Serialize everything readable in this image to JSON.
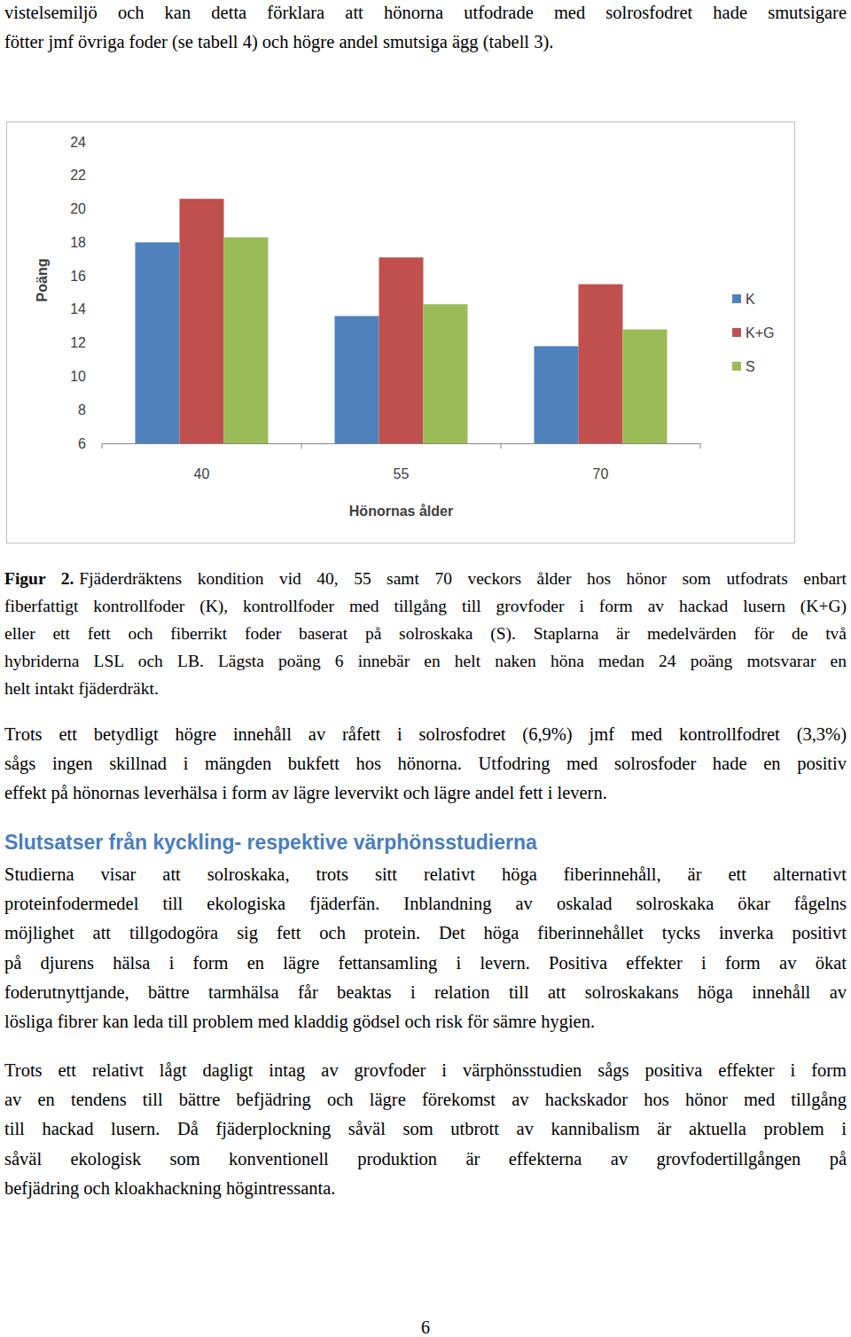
{
  "document": {
    "intro": {
      "lines": [
        "vistelsemiljö och kan detta förklara att hönorna utfodrade med solrosfodret hade smutsigare",
        "fötter jmf övriga foder (se tabell 4) och högre andel smutsiga ägg (tabell 3)."
      ]
    },
    "caption": {
      "label": "Figur 2.",
      "lines": [
        "Fjäderdräktens kondition vid 40, 55 samt 70 veckors ålder hos hönor som utfodrats enbart",
        "fiberfattigt kontrollfoder (K), kontrollfoder med tillgång till grovfoder i form av hackad lusern (K+G)",
        "eller ett fett och fiberrikt foder baserat på solroskaka (S). Staplarna är medelvärden för de två",
        "hybriderna LSL och LB. Lägsta poäng 6 innebär en helt naken höna medan 24 poäng motsvarar en",
        "helt intakt fjäderdräkt."
      ]
    },
    "paragraph_1": {
      "lines": [
        "Trots ett betydligt högre innehåll av råfett i solrosfodret (6,9%) jmf med kontrollfodret (3,3%)",
        "sågs ingen skillnad i mängden bukfett hos hönorna. Utfodring med solrosfoder hade en positiv",
        "effekt på hönornas leverhälsa i form av lägre levervikt och lägre andel fett i levern."
      ]
    },
    "heading": "Slutsatser från kyckling- respektive värphönsstudierna",
    "paragraph_2": {
      "lines": [
        "Studierna visar att solroskaka, trots sitt relativt höga fiberinnehåll, är ett alternativt",
        "proteinfodermedel till ekologiska fjäderfän. Inblandning av oskalad solroskaka ökar fågelns",
        "möjlighet att tillgodogöra sig fett och protein. Det höga fiberinnehållet tycks inverka positivt",
        "på djurens hälsa i form en lägre fettansamling i levern. Positiva effekter i form av ökat",
        "foderutnyttjande, bättre tarmhälsa får beaktas i relation till att solroskakans höga innehåll av",
        "lösliga fibrer kan leda till problem med kladdig gödsel och risk för sämre hygien."
      ]
    },
    "paragraph_3": {
      "lines": [
        "Trots ett relativt lågt dagligt intag av grovfoder i värphönsstudien sågs positiva effekter i form",
        "av en tendens till bättre befjädring och lägre förekomst av hackskador hos hönor med tillgång",
        "till hackad lusern. Då fjäderplockning såväl som utbrott av kannibalism är aktuella problem i",
        "såväl ekologisk som konventionell produktion är effekterna av grovfodertillgången på",
        "befjädring och kloakhackning högintressanta."
      ]
    },
    "page_number": "6"
  },
  "chart_data": {
    "type": "bar",
    "x_label": "Hönornas ålder",
    "y_label": "Poäng",
    "categories": [
      "40",
      "55",
      "70"
    ],
    "series": [
      {
        "name": "K",
        "color": "#4f81bd",
        "values": [
          18.0,
          13.6,
          11.8
        ]
      },
      {
        "name": "K+G",
        "color": "#c0504d",
        "values": [
          20.6,
          17.1,
          15.5
        ]
      },
      {
        "name": "S",
        "color": "#9bbb59",
        "values": [
          18.3,
          14.3,
          12.8
        ]
      }
    ],
    "ylim": [
      6,
      24
    ],
    "yticks": [
      6,
      8,
      10,
      12,
      14,
      16,
      18,
      20,
      22,
      24
    ],
    "grid": false,
    "legend": "right"
  }
}
